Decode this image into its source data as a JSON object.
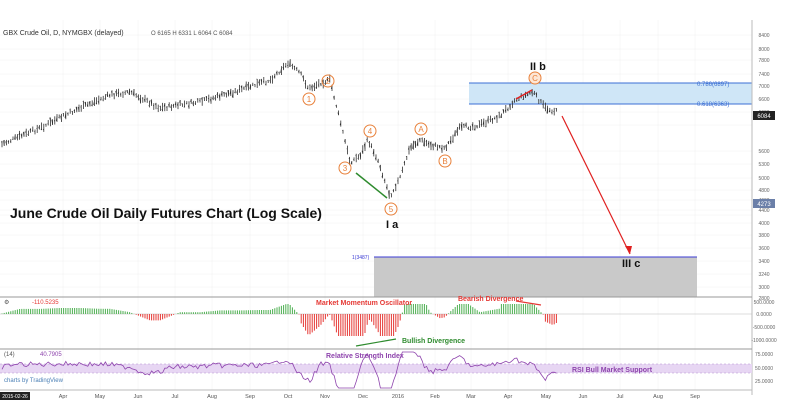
{
  "header": {
    "symbol": "GBX Crude Oil, D, NYMGBX (delayed)",
    "ohlc": "O 6165 H 6331 L 6064 C 6084"
  },
  "annotations": {
    "main_title": "June Crude Oil Daily Futures Chart (Log Scale)",
    "wave_IIb": "II b",
    "wave_Ia": "I  a",
    "wave_IIIc": "III  c",
    "fib_786": "0.786(6897)",
    "fib_618": "0.618(6363)",
    "fib_1": "1(3487)",
    "mmo_title": "Market Momentum Oscillator",
    "bearish_div": "Bearish Divergence",
    "bullish_div": "Bullish Divergence",
    "rsi_title": "Relative Strength Index",
    "rsi_support": "RSI Bull Market Support",
    "mmo_value": "-110.5235",
    "rsi_value": "40.7905",
    "rsi_label": "(14)",
    "brand": "charts by TradingView",
    "start_date": "2015-02-26"
  },
  "wave_labels": {
    "w1": "1",
    "w2": "2",
    "w3": "3",
    "w4": "4",
    "w5": "5",
    "wA": "A",
    "wB": "B",
    "wC": "C"
  },
  "price_axis": {
    "ticks": [
      "8400",
      "8000",
      "7800",
      "7400",
      "7000",
      "6600",
      "6600",
      "6084",
      "5600",
      "5300",
      "5000",
      "4800",
      "4600",
      "4400",
      "4273",
      "4000",
      "3800",
      "3600",
      "3400",
      "3240",
      "3000",
      "2800"
    ],
    "last_price": "6084",
    "low_price": "4273"
  },
  "osc_axis": {
    "ticks": [
      "500.0000",
      "0.0000",
      "-500.0000",
      "-1000.0000"
    ]
  },
  "rsi_axis": {
    "ticks": [
      "75.0000",
      "50.0000",
      "25.0000"
    ]
  },
  "x_axis": {
    "labels": [
      "Apr",
      "May",
      "Jun",
      "Jul",
      "Aug",
      "Sep",
      "Oct",
      "Nov",
      "Dec",
      "2016",
      "Feb",
      "Mar",
      "Apr",
      "May",
      "Jun",
      "Jul",
      "Aug",
      "Sep"
    ]
  },
  "colors": {
    "price_bar": "#2f2f2f",
    "wave_label": "#e8803a",
    "fib_zone": "#cfe6f7",
    "fib_line": "#3b6fd4",
    "target_zone": "#c9c9c9",
    "projection": "#e02020",
    "bullish_line": "#2e8b2e",
    "osc_up": "#4caf50",
    "osc_down": "#e53935",
    "rsi_line": "#8e44ad",
    "rsi_band": "#e7d6f3"
  },
  "chart_data": {
    "type": "candlestick",
    "title": "June Crude Oil Daily Futures Chart (Log Scale)",
    "price_path": {
      "dates": [
        "2015-03",
        "2015-04",
        "2015-05",
        "2015-06",
        "2015-07",
        "2015-08",
        "2015-09",
        "2015-10",
        "2015-11",
        "2015-12",
        "2016-01",
        "2016-02",
        "2016-03",
        "2016-04",
        "2016-05"
      ],
      "close": [
        5700,
        6200,
        6800,
        6600,
        7000,
        6800,
        7200,
        7500,
        6500,
        5000,
        4273,
        5300,
        5600,
        6600,
        6084
      ]
    },
    "wave_points": [
      {
        "label": "1",
        "price": 6900
      },
      {
        "label": "2",
        "price": 7100
      },
      {
        "label": "3",
        "price": 5100
      },
      {
        "label": "4",
        "price": 5700
      },
      {
        "label": "5",
        "price": 4273
      },
      {
        "label": "A",
        "price": 5600
      },
      {
        "label": "B",
        "price": 5300
      },
      {
        "label": "C",
        "price": 6800
      }
    ],
    "fib_levels": [
      {
        "label": "0.786",
        "price": 6897
      },
      {
        "label": "0.618",
        "price": 6363
      },
      {
        "label": "1",
        "price": 3487
      }
    ],
    "oscillator_last": -110.5235,
    "rsi_last": 40.7905
  }
}
